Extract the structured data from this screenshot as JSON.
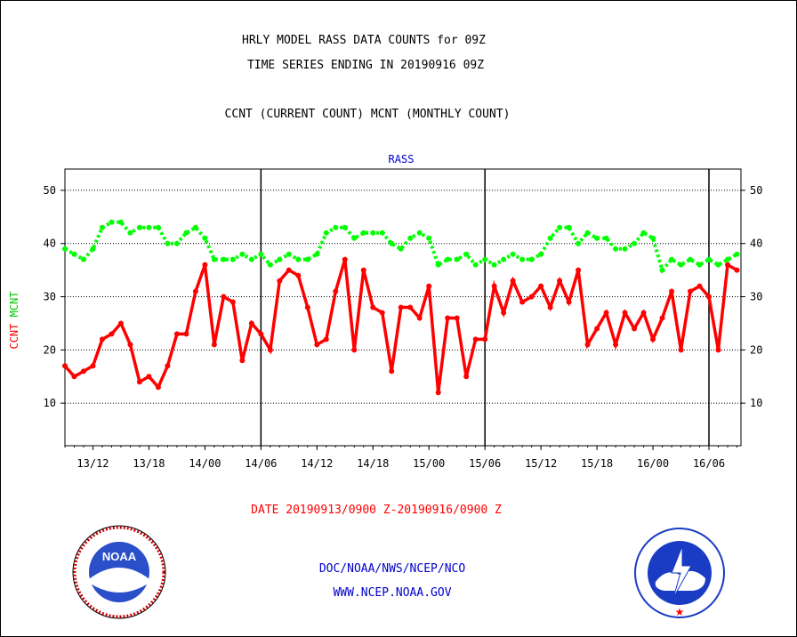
{
  "header": {
    "title_line1": "HRLY MODEL RASS DATA COUNTS for 09Z",
    "title_line2": "TIME SERIES ENDING IN 20190916 09Z",
    "subtitle": "CCNT (CURRENT COUNT) MCNT (MONTHLY COUNT)"
  },
  "footer": {
    "date_range": "DATE 20190913/0900 Z-20190916/0900 Z",
    "agency": "DOC/NOAA/NWS/NCEP/NCO",
    "website": "WWW.NCEP.NOAA.GOV"
  },
  "logos": {
    "left": "NOAA",
    "right": "NATIONAL WEATHER SERVICE"
  },
  "colors": {
    "ccnt": "#ff0000",
    "mcnt": "#00ff00",
    "label_blue": "#0000cc",
    "day_divider": "#000000"
  },
  "chart_data": {
    "type": "line",
    "title": "RASS",
    "ylabel_ccnt": "CCNT",
    "ylabel_mcnt": "MCNT",
    "ylim": [
      2,
      54
    ],
    "yticks": [
      10,
      20,
      30,
      40,
      50
    ],
    "grid": "dotted horizontal at 10, 20, 30, 40, 50",
    "x_tick_labels": [
      "13/12",
      "13/18",
      "14/00",
      "14/06",
      "14/12",
      "14/18",
      "15/00",
      "15/06",
      "15/12",
      "15/18",
      "16/00",
      "16/06"
    ],
    "day_dividers": [
      "14/06",
      "15/06",
      "16/06"
    ],
    "series": [
      {
        "name": "CCNT",
        "color": "#ff0000",
        "values": [
          17,
          15,
          16,
          17,
          22,
          23,
          25,
          21,
          14,
          15,
          13,
          17,
          23,
          23,
          31,
          36,
          21,
          30,
          29,
          18,
          25,
          23,
          20,
          33,
          35,
          34,
          28,
          21,
          22,
          31,
          37,
          20,
          35,
          28,
          27,
          16,
          28,
          28,
          26,
          32,
          12,
          26,
          26,
          15,
          22,
          22,
          32,
          27,
          33,
          29,
          30,
          32,
          28,
          33,
          29,
          35,
          21,
          24,
          27,
          21,
          27,
          24,
          27,
          22,
          26,
          31,
          20,
          31,
          32,
          30,
          20,
          36,
          35
        ]
      },
      {
        "name": "MCNT",
        "color": "#00ff00",
        "values": [
          39,
          38,
          37,
          39,
          43,
          44,
          44,
          42,
          43,
          43,
          43,
          40,
          40,
          42,
          43,
          41,
          37,
          37,
          37,
          38,
          37,
          38,
          36,
          37,
          38,
          37,
          37,
          38,
          42,
          43,
          43,
          41,
          42,
          42,
          42,
          40,
          39,
          41,
          42,
          41,
          36,
          37,
          37,
          38,
          36,
          37,
          36,
          37,
          38,
          37,
          37,
          38,
          41,
          43,
          43,
          40,
          42,
          41,
          41,
          39,
          39,
          40,
          42,
          41,
          35,
          37,
          36,
          37,
          36,
          37,
          36,
          37,
          38
        ]
      }
    ]
  }
}
